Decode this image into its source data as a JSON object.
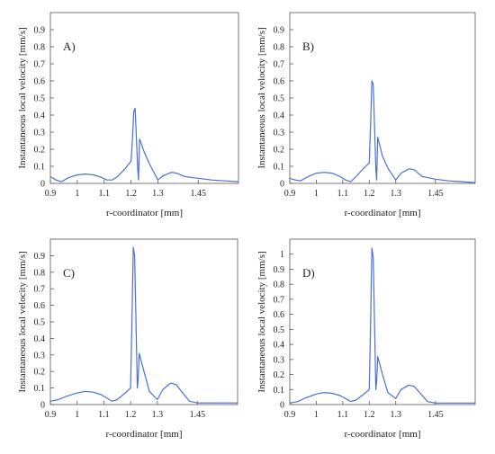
{
  "chart_data": [
    {
      "type": "line",
      "panel_label": "A)",
      "xlabel": "r-coordinator [mm]",
      "ylabel": "Instantaneous local velocity [mm/s]",
      "xlim": [
        0.9,
        1.6
      ],
      "ylim": [
        0,
        1.0
      ],
      "x_ticks": [
        "0.9",
        "1",
        "1.1",
        "1.2",
        "1.3",
        "1.45"
      ],
      "x_tick_values": [
        0.9,
        1.0,
        1.1,
        1.2,
        1.3,
        1.45
      ],
      "y_ticks": [
        "0",
        "0.1",
        "0.2",
        "0.3",
        "0.4",
        "0.5",
        "0.6",
        "0.7",
        "0.8",
        "0.9"
      ],
      "y_tick_values": [
        0,
        0.1,
        0.2,
        0.3,
        0.4,
        0.5,
        0.6,
        0.7,
        0.8,
        0.9
      ],
      "grid": false,
      "color": "#4a6fd8",
      "series": [
        {
          "x": [
            0.9,
            0.92,
            0.94,
            0.97,
            1.0,
            1.03,
            1.06,
            1.09,
            1.11,
            1.13,
            1.15,
            1.18,
            1.2,
            1.205,
            1.21,
            1.215,
            1.225,
            1.228,
            1.232,
            1.25,
            1.27,
            1.3,
            1.32,
            1.35,
            1.37,
            1.4,
            1.45,
            1.5,
            1.55,
            1.6
          ],
          "y": [
            0.04,
            0.02,
            0.01,
            0.035,
            0.05,
            0.055,
            0.05,
            0.035,
            0.02,
            0.02,
            0.04,
            0.09,
            0.13,
            0.25,
            0.42,
            0.44,
            0.09,
            0.02,
            0.26,
            0.18,
            0.11,
            0.02,
            0.045,
            0.065,
            0.06,
            0.04,
            0.03,
            0.02,
            0.015,
            0.01
          ]
        }
      ]
    },
    {
      "type": "line",
      "panel_label": "B)",
      "xlabel": "r-coordinator [mm]",
      "ylabel": "Instantaneous local velocity [mm/s]",
      "xlim": [
        0.9,
        1.6
      ],
      "ylim": [
        0,
        1.0
      ],
      "x_ticks": [
        "0.9",
        "1",
        "1.1",
        "1.2",
        "1.3",
        "1.45"
      ],
      "x_tick_values": [
        0.9,
        1.0,
        1.1,
        1.2,
        1.3,
        1.45
      ],
      "y_ticks": [
        "0",
        "0.1",
        "0.2",
        "0.3",
        "0.4",
        "0.5",
        "0.6",
        "0.7",
        "0.8",
        "0.9"
      ],
      "y_tick_values": [
        0,
        0.1,
        0.2,
        0.3,
        0.4,
        0.5,
        0.6,
        0.7,
        0.8,
        0.9
      ],
      "grid": false,
      "color": "#4a6fd8",
      "series": [
        {
          "x": [
            0.9,
            0.92,
            0.94,
            0.97,
            1.0,
            1.03,
            1.06,
            1.09,
            1.11,
            1.13,
            1.15,
            1.18,
            1.2,
            1.205,
            1.21,
            1.215,
            1.225,
            1.228,
            1.232,
            1.25,
            1.27,
            1.3,
            1.32,
            1.35,
            1.37,
            1.4,
            1.45,
            1.5,
            1.55,
            1.6
          ],
          "y": [
            0.03,
            0.02,
            0.015,
            0.04,
            0.06,
            0.065,
            0.06,
            0.04,
            0.02,
            0.01,
            0.04,
            0.09,
            0.12,
            0.35,
            0.6,
            0.58,
            0.09,
            0.02,
            0.27,
            0.16,
            0.09,
            0.02,
            0.06,
            0.085,
            0.08,
            0.04,
            0.025,
            0.015,
            0.01,
            0.005
          ]
        }
      ]
    },
    {
      "type": "line",
      "panel_label": "C)",
      "xlabel": "r-coordinator [mm]",
      "ylabel": "Instantaneous local velocity [mm/s]",
      "xlim": [
        0.9,
        1.6
      ],
      "ylim": [
        0,
        1.0
      ],
      "x_ticks": [
        "0.9",
        "1",
        "1.1",
        "1.2",
        "1.3",
        "1.45"
      ],
      "x_tick_values": [
        0.9,
        1.0,
        1.1,
        1.2,
        1.3,
        1.45
      ],
      "y_ticks": [
        "0",
        "0.1",
        "0.2",
        "0.3",
        "0.4",
        "0.5",
        "0.6",
        "0.7",
        "0.8",
        "0.9"
      ],
      "y_tick_values": [
        0,
        0.1,
        0.2,
        0.3,
        0.4,
        0.5,
        0.6,
        0.7,
        0.8,
        0.9
      ],
      "grid": false,
      "color": "#4a6fd8",
      "series": [
        {
          "x": [
            0.9,
            0.93,
            0.96,
            1.0,
            1.03,
            1.06,
            1.09,
            1.11,
            1.13,
            1.15,
            1.18,
            1.2,
            1.205,
            1.21,
            1.215,
            1.225,
            1.228,
            1.232,
            1.25,
            1.27,
            1.3,
            1.32,
            1.35,
            1.37,
            1.4,
            1.42,
            1.45,
            1.5,
            1.55,
            1.6
          ],
          "y": [
            0.02,
            0.03,
            0.05,
            0.07,
            0.08,
            0.075,
            0.06,
            0.04,
            0.02,
            0.03,
            0.07,
            0.1,
            0.5,
            0.95,
            0.9,
            0.1,
            0.15,
            0.31,
            0.2,
            0.08,
            0.03,
            0.09,
            0.13,
            0.12,
            0.06,
            0.02,
            0.01,
            0.01,
            0.01,
            0.01
          ]
        }
      ]
    },
    {
      "type": "line",
      "panel_label": "D)",
      "xlabel": "r-coordinator [mm]",
      "ylabel": "Instantaneous local velocity [mm/s]",
      "xlim": [
        0.9,
        1.6
      ],
      "ylim": [
        0,
        1.1
      ],
      "x_ticks": [
        "0.9",
        "1",
        "1.1",
        "1.2",
        "1.3",
        "1.45"
      ],
      "x_tick_values": [
        0.9,
        1.0,
        1.1,
        1.2,
        1.3,
        1.45
      ],
      "y_ticks": [
        "0",
        "0.1",
        "0.2",
        "0.3",
        "0.4",
        "0.5",
        "0.6",
        "0.7",
        "0.8",
        "0.9",
        "1"
      ],
      "y_tick_values": [
        0,
        0.1,
        0.2,
        0.3,
        0.4,
        0.5,
        0.6,
        0.7,
        0.8,
        0.9,
        1.0
      ],
      "grid": false,
      "color": "#4a6fd8",
      "series": [
        {
          "x": [
            0.9,
            0.93,
            0.96,
            1.0,
            1.03,
            1.06,
            1.09,
            1.11,
            1.13,
            1.15,
            1.18,
            1.2,
            1.205,
            1.21,
            1.215,
            1.225,
            1.228,
            1.232,
            1.25,
            1.27,
            1.3,
            1.32,
            1.35,
            1.37,
            1.4,
            1.42,
            1.45,
            1.5,
            1.55,
            1.6
          ],
          "y": [
            0.01,
            0.02,
            0.045,
            0.07,
            0.08,
            0.075,
            0.06,
            0.04,
            0.02,
            0.03,
            0.07,
            0.1,
            0.55,
            1.04,
            0.98,
            0.1,
            0.15,
            0.32,
            0.2,
            0.08,
            0.04,
            0.1,
            0.13,
            0.12,
            0.06,
            0.02,
            0.01,
            0.01,
            0.01,
            0.01
          ]
        }
      ]
    }
  ]
}
